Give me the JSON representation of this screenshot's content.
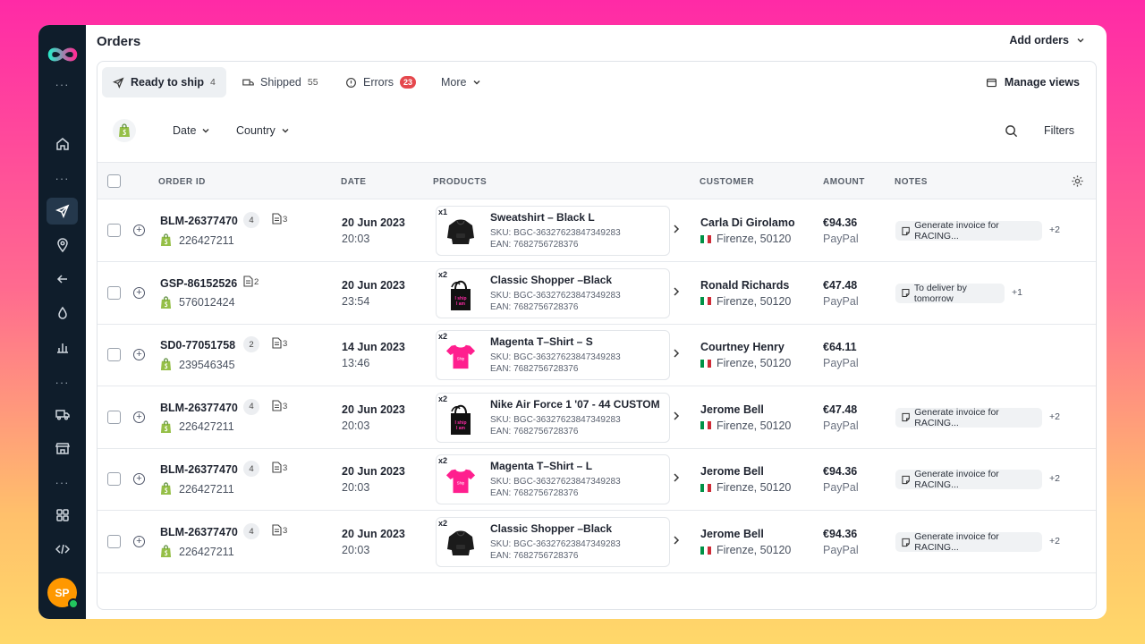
{
  "app": {
    "title": "Orders",
    "add_orders": "Add orders"
  },
  "sidebar": {
    "avatar_initials": "SP"
  },
  "tabs": [
    {
      "label": "Ready to ship",
      "count": "4"
    },
    {
      "label": "Shipped",
      "count": "55"
    },
    {
      "label": "Errors",
      "count": "23"
    },
    {
      "label": "More"
    }
  ],
  "manage_views": "Manage views",
  "filters": {
    "date": "Date",
    "country": "Country",
    "filters": "Filters"
  },
  "columns": {
    "order_id": "ORDER ID",
    "date": "DATE",
    "products": "PRODUCTS",
    "customer": "CUSTOMER",
    "amount": "AMOUNT",
    "notes": "NOTES"
  },
  "orders": [
    {
      "order_id": "BLM-26377470",
      "count": "4",
      "docs": "3",
      "store_id": "226427211",
      "date": "20 Jun 2023",
      "time": "20:03",
      "qty": "x1",
      "image": "hoodie-icon",
      "product": "Sweatshirt – Black L",
      "sku": "SKU: BGC-36327623847349283",
      "ean": "EAN: 7682756728376",
      "customer": "Carla Di Girolamo",
      "location": "Firenze, 50120",
      "amount": "€94.36",
      "payment": "PayPal",
      "note": "Generate invoice for RACING...",
      "note_more": "+2"
    },
    {
      "order_id": "GSP-86152526",
      "count": "",
      "docs": "2",
      "store_id": "576012424",
      "date": "20 Jun 2023",
      "time": "23:54",
      "qty": "x2",
      "image": "tote-bag-icon",
      "product": "Classic Shopper –Black",
      "sku": "SKU: BGC-36327623847349283",
      "ean": "EAN: 7682756728376",
      "customer": "Ronald Richards",
      "location": "Firenze, 50120",
      "amount": "€47.48",
      "payment": "PayPal",
      "note": "To deliver by tomorrow",
      "note_more": "+1"
    },
    {
      "order_id": "SD0-77051758",
      "count": "2",
      "docs": "3",
      "store_id": "239546345",
      "date": "14 Jun 2023",
      "time": "13:46",
      "qty": "x2",
      "image": "tshirt-icon",
      "product": "Magenta T–Shirt – S",
      "sku": "SKU: BGC-36327623847349283",
      "ean": "EAN: 7682756728376",
      "customer": "Courtney Henry",
      "location": "Firenze, 50120",
      "amount": "€64.11",
      "payment": "PayPal",
      "note": "",
      "note_more": ""
    },
    {
      "order_id": "BLM-26377470",
      "count": "4",
      "docs": "3",
      "store_id": "226427211",
      "date": "20 Jun 2023",
      "time": "20:03",
      "qty": "x2",
      "image": "tote-bag-icon",
      "product": "Nike Air Force 1 '07 - 44 CUSTOM",
      "sku": "SKU: BGC-36327623847349283",
      "ean": "EAN: 7682756728376",
      "customer": "Jerome Bell",
      "location": "Firenze, 50120",
      "amount": "€47.48",
      "payment": "PayPal",
      "note": "Generate invoice for RACING...",
      "note_more": "+2"
    },
    {
      "order_id": "BLM-26377470",
      "count": "4",
      "docs": "3",
      "store_id": "226427211",
      "date": "20 Jun 2023",
      "time": "20:03",
      "qty": "x2",
      "image": "tshirt-icon",
      "product": "Magenta T–Shirt – L",
      "sku": "SKU: BGC-36327623847349283",
      "ean": "EAN: 7682756728376",
      "customer": "Jerome Bell",
      "location": "Firenze, 50120",
      "amount": "€94.36",
      "payment": "PayPal",
      "note": "Generate invoice for RACING...",
      "note_more": "+2"
    },
    {
      "order_id": "BLM-26377470",
      "count": "4",
      "docs": "3",
      "store_id": "226427211",
      "date": "20 Jun 2023",
      "time": "20:03",
      "qty": "x2",
      "image": "hoodie-icon",
      "product": "Classic Shopper –Black",
      "sku": "SKU: BGC-36327623847349283",
      "ean": "EAN: 7682756728376",
      "customer": "Jerome Bell",
      "location": "Firenze, 50120",
      "amount": "€94.36",
      "payment": "PayPal",
      "note": "Generate invoice for RACING...",
      "note_more": "+2"
    }
  ],
  "colors": {
    "sidebar": "#0f1d2b",
    "accent": "#ff1f8e",
    "error": "#e5484d",
    "shopify": "#95bf47"
  }
}
